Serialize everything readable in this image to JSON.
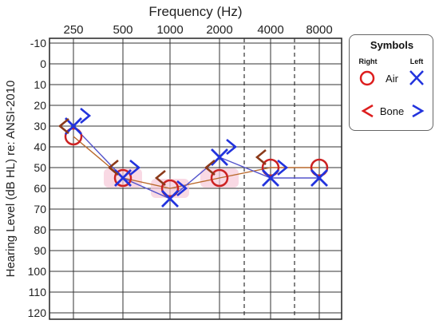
{
  "chart_data": {
    "type": "line",
    "title": "Frequency (Hz)",
    "ylabel": "Hearing Level (dB HL) re: ANSI-2010",
    "x_categories": [
      "250",
      "500",
      "1000",
      "2000",
      "4000",
      "8000"
    ],
    "y_ticks": [
      -10,
      0,
      10,
      20,
      30,
      40,
      50,
      60,
      70,
      80,
      90,
      100,
      110,
      120
    ],
    "ylim": [
      -10,
      120
    ],
    "y_inverted": true,
    "grid": true,
    "series": [
      {
        "name": "Right Air",
        "symbol": "circle",
        "color": "#cc2222",
        "line_color": "#b9692b",
        "x": [
          "250",
          "500",
          "1000",
          "2000",
          "4000",
          "8000"
        ],
        "values": [
          35,
          55,
          60,
          55,
          50,
          50
        ]
      },
      {
        "name": "Left Air",
        "symbol": "x",
        "color": "#2233dd",
        "line_color": "#5555cc",
        "x": [
          "250",
          "500",
          "1000",
          "2000",
          "4000",
          "8000"
        ],
        "values": [
          30,
          55,
          65,
          45,
          55,
          55
        ]
      },
      {
        "name": "Right Bone",
        "symbol": "<",
        "color": "#8b3a1a",
        "x": [
          "250",
          "500",
          "1000",
          "2000",
          "4000"
        ],
        "values": [
          30,
          50,
          55,
          50,
          45
        ]
      },
      {
        "name": "Left Bone",
        "symbol": ">",
        "color": "#2233dd",
        "x": [
          "250",
          "500",
          "1000",
          "2000",
          "4000"
        ],
        "values": [
          25,
          50,
          60,
          40,
          50
        ]
      }
    ]
  },
  "legend": {
    "title": "Symbols",
    "right_label": "Right",
    "left_label": "Left",
    "air_label": "Air",
    "bone_label": "Bone"
  }
}
